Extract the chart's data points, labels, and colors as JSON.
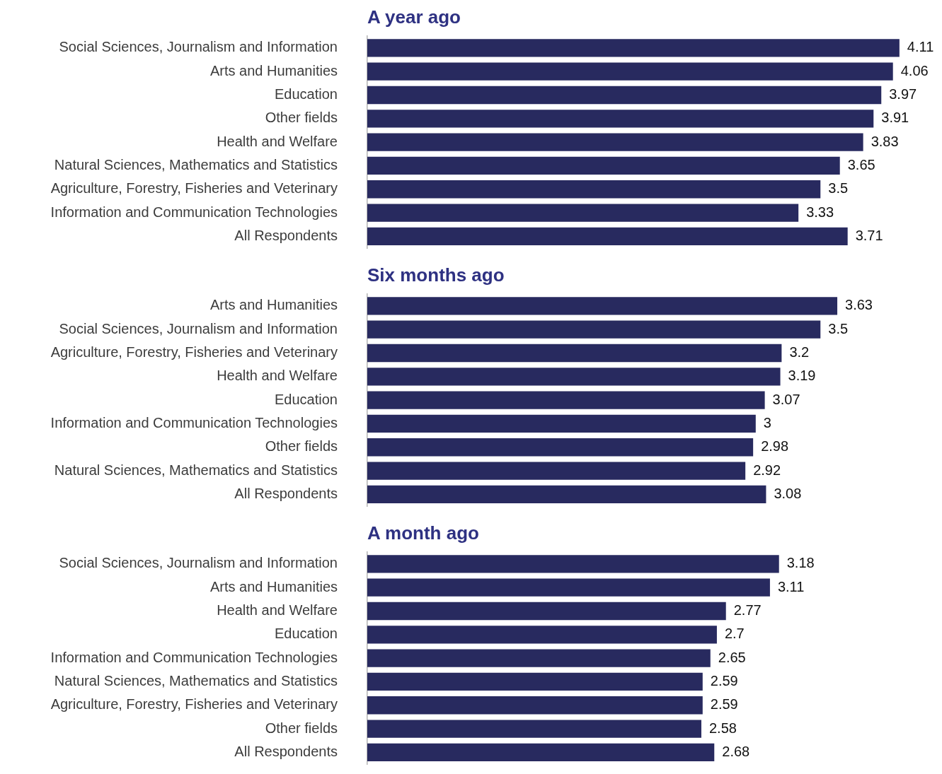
{
  "chart_data": [
    {
      "type": "bar",
      "orientation": "horizontal",
      "title": "A year ago",
      "categories": [
        "Social Sciences, Journalism and Information",
        "Arts and Humanities",
        "Education",
        "Other fields",
        "Health and Welfare",
        "Natural Sciences, Mathematics and Statistics",
        "Agriculture, Forestry, Fisheries and Veterinary",
        "Information and Communication Technologies",
        "All Respondents"
      ],
      "values": [
        4.11,
        4.06,
        3.97,
        3.91,
        3.83,
        3.65,
        3.5,
        3.33,
        3.71
      ],
      "color": "#282a5f",
      "data_labels": true,
      "tick_labels": "y"
    },
    {
      "type": "bar",
      "orientation": "horizontal",
      "title": "Six months ago",
      "categories": [
        "Arts and Humanities",
        "Social Sciences, Journalism and Information",
        "Agriculture, Forestry, Fisheries and Veterinary",
        "Health and Welfare",
        "Education",
        "Information and Communication Technologies",
        "Other fields",
        "Natural Sciences, Mathematics and Statistics",
        "All Respondents"
      ],
      "values": [
        3.63,
        3.5,
        3.2,
        3.19,
        3.07,
        3,
        2.98,
        2.92,
        3.08
      ],
      "color": "#282a5f",
      "data_labels": true,
      "tick_labels": "y"
    },
    {
      "type": "bar",
      "orientation": "horizontal",
      "title": "A month ago",
      "categories": [
        "Social Sciences, Journalism and Information",
        "Arts and Humanities",
        "Health and Welfare",
        "Education",
        "Information and Communication Technologies",
        "Natural Sciences, Mathematics and Statistics",
        "Agriculture, Forestry, Fisheries and Veterinary",
        "Other fields",
        "All Respondents"
      ],
      "values": [
        3.18,
        3.11,
        2.77,
        2.7,
        2.65,
        2.59,
        2.59,
        2.58,
        2.68
      ],
      "color": "#282a5f",
      "data_labels": true,
      "tick_labels": "y"
    }
  ]
}
